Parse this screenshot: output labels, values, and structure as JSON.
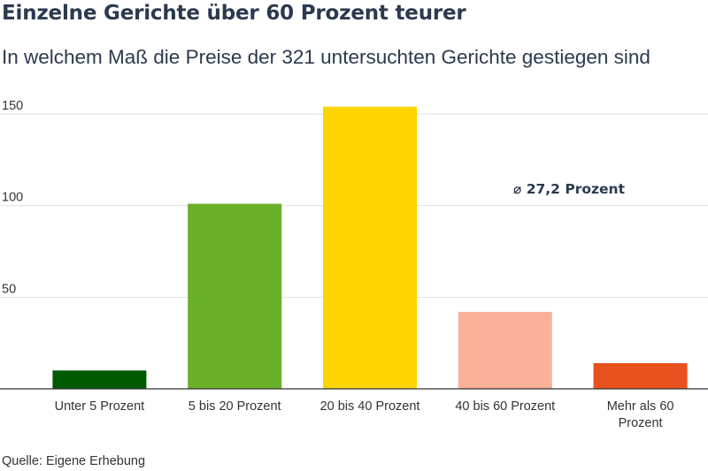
{
  "title": "Einzelne Gerichte über 60 Prozent teurer",
  "subtitle": "In welchem Maß die Preise der 321 untersuchten Gerichte gestiegen sind",
  "source": "Quelle: Eigene Erhebung",
  "chart_data": {
    "type": "bar",
    "categories": [
      "Unter 5 Prozent",
      "5 bis 20 Prozent",
      "20 bis 40 Prozent",
      "40 bis 60 Prozent",
      "Mehr als 60 Prozent"
    ],
    "category_lines": [
      [
        "Unter 5 Prozent"
      ],
      [
        "5 bis 20 Prozent"
      ],
      [
        "20 bis 40 Prozent"
      ],
      [
        "40 bis 60 Prozent"
      ],
      [
        "Mehr als 60",
        "Prozent"
      ]
    ],
    "values": [
      10,
      101,
      154,
      42,
      14
    ],
    "colors": [
      "#005a00",
      "#6aaf28",
      "#fdd500",
      "#f7b299",
      "#e8511e"
    ],
    "ylim": [
      0,
      150
    ],
    "yticks": [
      50,
      100,
      150
    ],
    "grid": true,
    "annotation": "⌀ 27,2 Prozent",
    "xlabel": "",
    "ylabel": ""
  }
}
